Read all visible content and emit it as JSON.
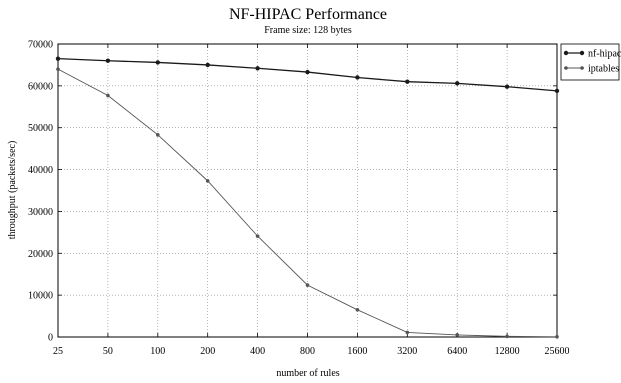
{
  "chart_data": {
    "type": "line",
    "title": "NF-HIPAC Performance",
    "subtitle": "Frame size: 128 bytes",
    "xlabel": "number of rules",
    "ylabel": "throughput (packets/sec)",
    "x": [
      "25",
      "50",
      "100",
      "200",
      "400",
      "800",
      "1600",
      "3200",
      "6400",
      "12800",
      "25600"
    ],
    "ylim": [
      0,
      70000
    ],
    "yticks": [
      "0",
      "10000",
      "20000",
      "30000",
      "40000",
      "50000",
      "60000",
      "70000"
    ],
    "grid": true,
    "legend_position": "top-right",
    "series": [
      {
        "name": "nf-hipac",
        "values": [
          66500,
          66000,
          65600,
          65000,
          64200,
          63300,
          62000,
          61000,
          60600,
          59800,
          58800
        ]
      },
      {
        "name": "iptables",
        "values": [
          64000,
          57700,
          48300,
          37300,
          24100,
          12400,
          6500,
          1100,
          500,
          150,
          50
        ]
      }
    ]
  }
}
